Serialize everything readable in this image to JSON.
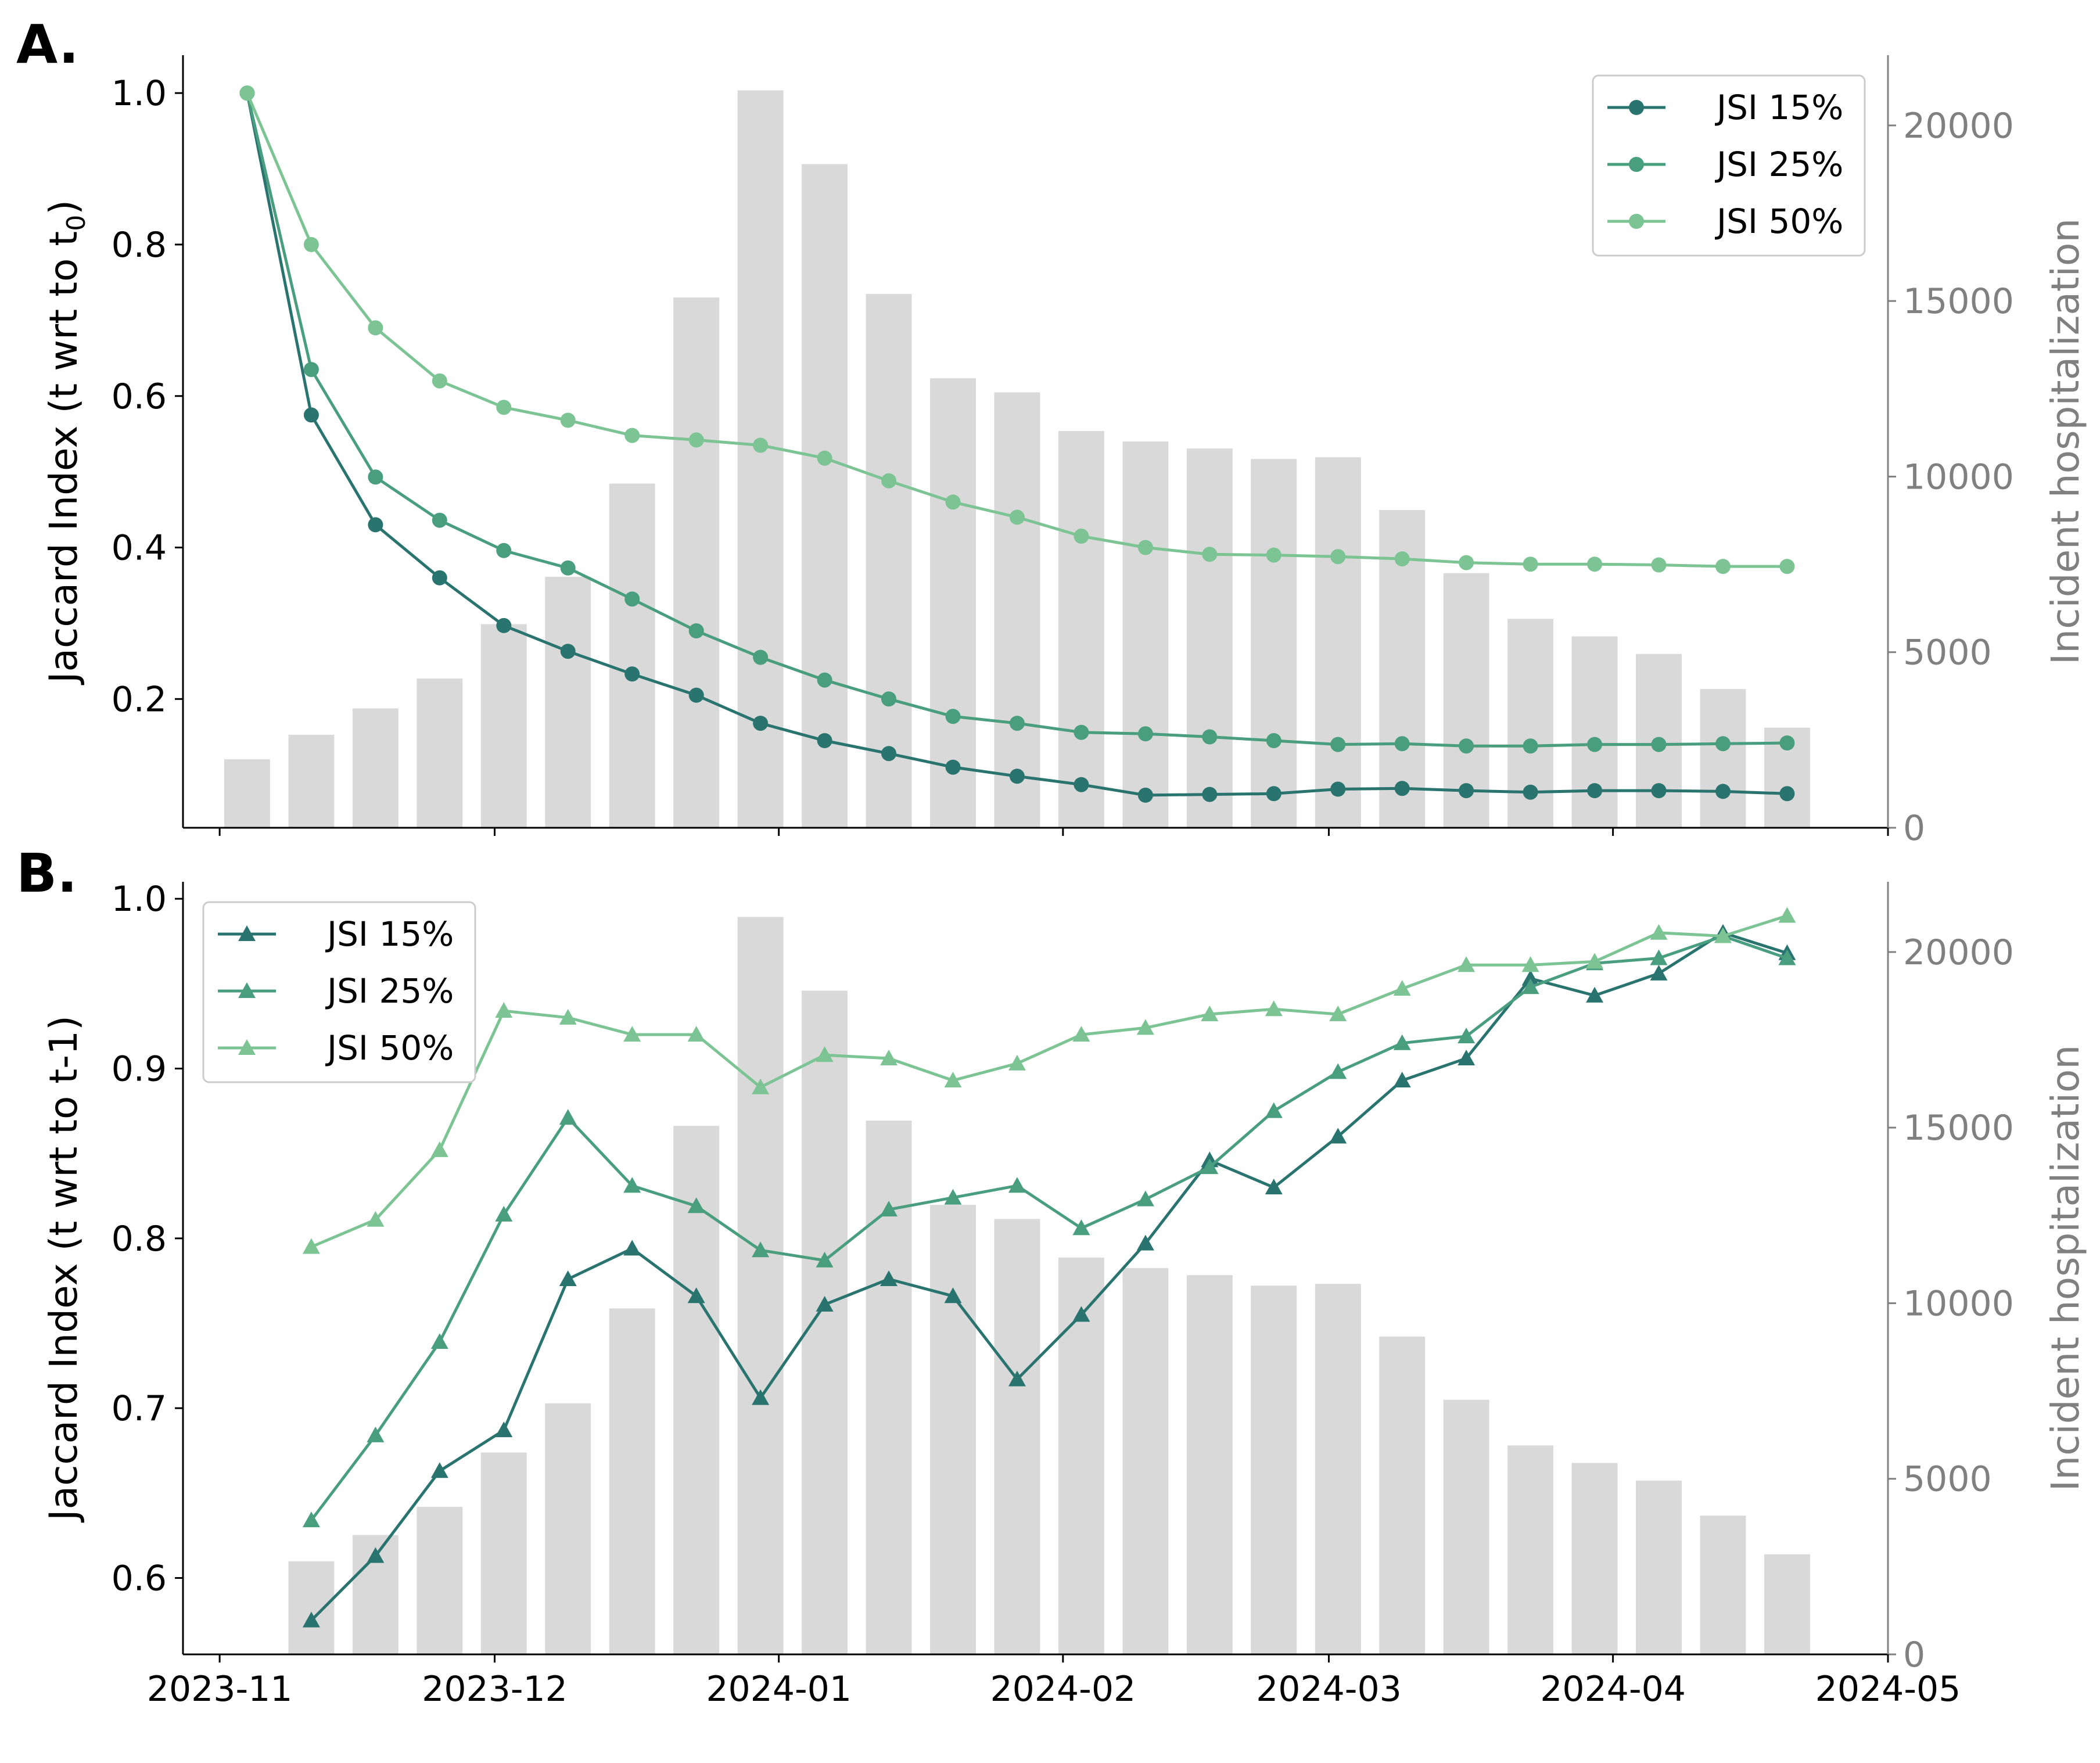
{
  "chart_data": [
    {
      "panel_label": "A.",
      "type": "line",
      "ylabel": "Jaccard Index (t wrt to t",
      "ylabel_sub": "0",
      "ylabel_end": ")",
      "y2label": "Incident hospitalization",
      "ylim": [
        0.03,
        1.05
      ],
      "y2lim": [
        0,
        22000
      ],
      "xlim": [
        "2023-10-28",
        "2024-05-01"
      ],
      "yticks": [
        0.2,
        0.4,
        0.6,
        0.8,
        1.0
      ],
      "y2ticks": [
        0,
        5000,
        10000,
        15000,
        20000
      ],
      "legend_position": "top-right",
      "bars": {
        "dates": [
          "2023-11-04",
          "2023-11-11",
          "2023-11-18",
          "2023-11-25",
          "2023-12-02",
          "2023-12-09",
          "2023-12-16",
          "2023-12-23",
          "2023-12-30",
          "2024-01-06",
          "2024-01-13",
          "2024-01-20",
          "2024-01-27",
          "2024-02-03",
          "2024-02-10",
          "2024-02-17",
          "2024-02-24",
          "2024-03-02",
          "2024-03-09",
          "2024-03-16",
          "2024-03-23",
          "2024-03-30",
          "2024-04-06",
          "2024-04-13",
          "2024-04-20"
        ],
        "values": [
          1950,
          2650,
          3400,
          4250,
          5800,
          7150,
          9800,
          15100,
          21000,
          18900,
          15200,
          12800,
          12400,
          11300,
          11000,
          10800,
          10500,
          10550,
          9050,
          7250,
          5950,
          5450,
          4950,
          3950,
          2850
        ]
      },
      "x_dates": [
        "2023-11-04",
        "2023-11-11",
        "2023-11-18",
        "2023-11-25",
        "2023-12-02",
        "2023-12-09",
        "2023-12-16",
        "2023-12-23",
        "2023-12-30",
        "2024-01-06",
        "2024-01-13",
        "2024-01-20",
        "2024-01-27",
        "2024-02-03",
        "2024-02-10",
        "2024-02-17",
        "2024-02-24",
        "2024-03-02",
        "2024-03-09",
        "2024-03-16",
        "2024-03-23",
        "2024-03-30",
        "2024-04-06",
        "2024-04-13",
        "2024-04-20"
      ],
      "series": [
        {
          "name": "JSI 15%",
          "color": "#2a7470",
          "values": [
            1.0,
            0.575,
            0.43,
            0.36,
            0.297,
            0.263,
            0.233,
            0.205,
            0.168,
            0.145,
            0.128,
            0.11,
            0.098,
            0.087,
            0.073,
            0.074,
            0.075,
            0.081,
            0.082,
            0.079,
            0.077,
            0.079,
            0.079,
            0.078,
            0.075
          ]
        },
        {
          "name": "JSI 25%",
          "color": "#4a9e80",
          "values": [
            1.0,
            0.635,
            0.493,
            0.436,
            0.396,
            0.373,
            0.332,
            0.29,
            0.255,
            0.225,
            0.2,
            0.177,
            0.168,
            0.156,
            0.154,
            0.15,
            0.145,
            0.14,
            0.141,
            0.138,
            0.138,
            0.14,
            0.14,
            0.141,
            0.142
          ]
        },
        {
          "name": "JSI 50%",
          "color": "#7cc493",
          "values": [
            1.0,
            0.8,
            0.69,
            0.62,
            0.585,
            0.568,
            0.548,
            0.542,
            0.535,
            0.518,
            0.488,
            0.46,
            0.44,
            0.415,
            0.4,
            0.391,
            0.39,
            0.388,
            0.385,
            0.38,
            0.378,
            0.378,
            0.377,
            0.375,
            0.375
          ]
        }
      ]
    },
    {
      "panel_label": "B.",
      "type": "line",
      "ylabel": "Jaccard Index (t wrt to t-1)",
      "y2label": "Incident hospitalization",
      "ylim": [
        0.555,
        1.01
      ],
      "y2lim": [
        0,
        22000
      ],
      "xlim": [
        "2023-10-28",
        "2024-05-01"
      ],
      "yticks": [
        0.6,
        0.7,
        0.8,
        0.9,
        1.0
      ],
      "y2ticks": [
        0,
        5000,
        10000,
        15000,
        20000
      ],
      "xticks": [
        "2023-11",
        "2023-12",
        "2024-01",
        "2024-02",
        "2024-03",
        "2024-04",
        "2024-05"
      ],
      "legend_position": "top-left",
      "bars": {
        "dates": [
          "2023-11-11",
          "2023-11-18",
          "2023-11-25",
          "2023-12-02",
          "2023-12-09",
          "2023-12-16",
          "2023-12-23",
          "2023-12-30",
          "2024-01-06",
          "2024-01-13",
          "2024-01-20",
          "2024-01-27",
          "2024-02-03",
          "2024-02-10",
          "2024-02-17",
          "2024-02-24",
          "2024-03-02",
          "2024-03-09",
          "2024-03-16",
          "2024-03-23",
          "2024-03-30",
          "2024-04-06",
          "2024-04-13",
          "2024-04-20"
        ],
        "values": [
          2650,
          3400,
          4200,
          5750,
          7150,
          9850,
          15050,
          21000,
          18900,
          15200,
          12800,
          12400,
          11300,
          11000,
          10800,
          10500,
          10550,
          9050,
          7250,
          5950,
          5450,
          4950,
          3950,
          2850
        ]
      },
      "x_dates": [
        "2023-11-11",
        "2023-11-18",
        "2023-11-25",
        "2023-12-02",
        "2023-12-09",
        "2023-12-16",
        "2023-12-23",
        "2023-12-30",
        "2024-01-06",
        "2024-01-13",
        "2024-01-20",
        "2024-01-27",
        "2024-02-03",
        "2024-02-10",
        "2024-02-17",
        "2024-02-24",
        "2024-03-02",
        "2024-03-09",
        "2024-03-16",
        "2024-03-23",
        "2024-03-30",
        "2024-04-06",
        "2024-04-13",
        "2024-04-20"
      ],
      "series": [
        {
          "name": "JSI 15%",
          "color": "#2a7470",
          "values": [
            0.575,
            0.613,
            0.663,
            0.687,
            0.776,
            0.794,
            0.766,
            0.706,
            0.761,
            0.776,
            0.766,
            0.717,
            0.755,
            0.797,
            0.846,
            0.83,
            0.86,
            0.893,
            0.906,
            0.953,
            0.943,
            0.956,
            0.98,
            0.968
          ]
        },
        {
          "name": "JSI 25%",
          "color": "#4a9e80",
          "values": [
            0.634,
            0.684,
            0.739,
            0.814,
            0.871,
            0.831,
            0.819,
            0.793,
            0.787,
            0.817,
            0.824,
            0.831,
            0.806,
            0.823,
            0.842,
            0.875,
            0.898,
            0.915,
            0.919,
            0.948,
            0.962,
            0.965,
            0.978,
            0.965
          ]
        },
        {
          "name": "JSI 50%",
          "color": "#7cc493",
          "values": [
            0.795,
            0.811,
            0.852,
            0.934,
            0.93,
            0.92,
            0.92,
            0.889,
            0.908,
            0.906,
            0.893,
            0.903,
            0.92,
            0.924,
            0.932,
            0.935,
            0.932,
            0.947,
            0.961,
            0.961,
            0.963,
            0.98,
            0.978,
            0.99
          ]
        }
      ]
    }
  ]
}
